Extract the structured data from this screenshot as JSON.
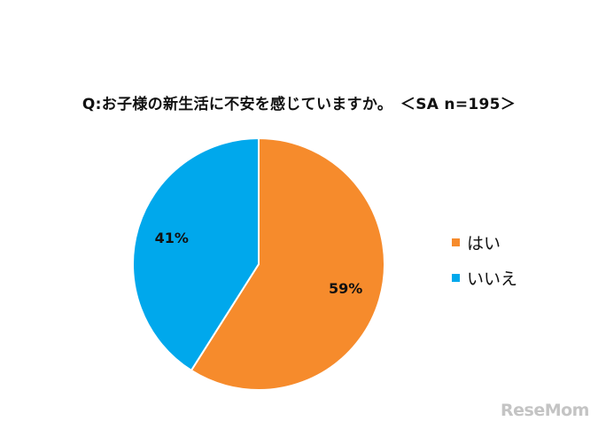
{
  "title": "Q:お子様の新生活に不安を感じていますか。　＜SA n=195＞",
  "chart_data": {
    "type": "pie",
    "title": "Q:お子様の新生活に不安を感じていますか。　＜SA n=195＞",
    "slices": [
      {
        "name": "はい",
        "value": 59,
        "label": "59%",
        "color": "#F68B2C"
      },
      {
        "name": "いいえ",
        "value": 41,
        "label": "41%",
        "color": "#00A8EC"
      }
    ],
    "legend_position": "right"
  },
  "legend": [
    {
      "label": "はい",
      "color": "#F68B2C"
    },
    {
      "label": "いいえ",
      "color": "#00A8EC"
    }
  ],
  "watermark": "ReseMom"
}
